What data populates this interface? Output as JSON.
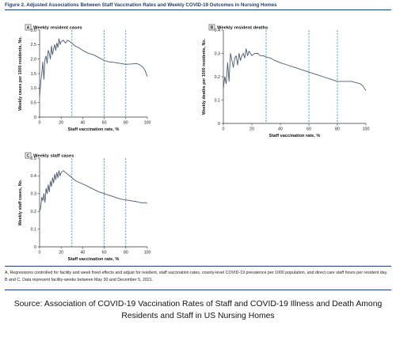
{
  "figure_title": "Figure 2. Adjusted Associations Between Staff Vaccination Rates and Weekly COVID-19 Outcomes in Nursing Homes",
  "footnote": "A, Regressions controlled for facility and week fixed effects and adjust for resident, staff vaccination rates, county-level COVID-19 prevalence per 1000 population, and direct care staff hours per resident day. B and C, Data represent facility-weeks between May 30 and December 5, 2021.",
  "source": "Source: Association of COVID-19 Vaccination Rates of Staff and COVID-19 Illness and Death Among Residents and Staff in US Nursing Homes",
  "colors": {
    "line": "#4a5a6e",
    "reference": "#2a85c4",
    "axis": "#333333",
    "title": "#1d3f73"
  },
  "chart_data": [
    {
      "type": "line",
      "panel_letter": "A",
      "title": "Weekly resident cases",
      "xlabel": "Staff vaccination rate, %",
      "ylabel": "Weekly cases per 1000 residents, No.",
      "xlim": [
        0,
        100
      ],
      "ylim": [
        0,
        3.0
      ],
      "xticks": [
        "0",
        "20",
        "40",
        "60",
        "80",
        "100"
      ],
      "yticks": [
        "0",
        "0.5",
        "1.0",
        "1.5",
        "2.0",
        "2.5",
        "3.0"
      ],
      "reference_lines_x": [
        30,
        60,
        80
      ],
      "x": [
        0,
        1,
        2,
        3,
        4,
        5,
        6,
        7,
        8,
        9,
        10,
        11,
        12,
        13,
        14,
        15,
        16,
        17,
        18,
        19,
        20,
        22,
        24,
        26,
        28,
        30,
        33,
        36,
        40,
        45,
        50,
        55,
        60,
        65,
        70,
        75,
        80,
        85,
        90,
        93,
        96,
        98,
        100
      ],
      "values": [
        0.7,
        1.2,
        1.5,
        1.9,
        1.3,
        2.0,
        2.1,
        1.85,
        2.3,
        2.2,
        2.0,
        2.45,
        2.15,
        2.35,
        2.5,
        2.3,
        2.55,
        2.4,
        2.7,
        2.5,
        2.6,
        2.65,
        2.55,
        2.65,
        2.6,
        2.55,
        2.45,
        2.4,
        2.3,
        2.2,
        2.15,
        2.05,
        1.95,
        1.9,
        1.88,
        1.85,
        1.82,
        1.83,
        1.85,
        1.8,
        1.72,
        1.6,
        1.4
      ]
    },
    {
      "type": "line",
      "panel_letter": "B",
      "title": "Weekly resident deaths",
      "xlabel": "Staff vaccination rate, %",
      "ylabel": "Weekly deaths per 1000 residents, No.",
      "xlim": [
        0,
        100
      ],
      "ylim": [
        0,
        0.4
      ],
      "xticks": [
        "0",
        "20",
        "40",
        "60",
        "80",
        "100"
      ],
      "yticks": [
        "0",
        "0.1",
        "0.2",
        "0.3",
        "0.4"
      ],
      "reference_lines_x": [
        30,
        60,
        80
      ],
      "x": [
        0,
        1,
        2,
        3,
        4,
        5,
        6,
        7,
        8,
        9,
        10,
        11,
        12,
        13,
        14,
        15,
        16,
        17,
        18,
        19,
        20,
        22,
        24,
        26,
        28,
        30,
        33,
        36,
        40,
        45,
        50,
        55,
        60,
        65,
        70,
        75,
        80,
        85,
        90,
        93,
        96,
        98,
        100
      ],
      "values": [
        0.15,
        0.2,
        0.17,
        0.26,
        0.18,
        0.3,
        0.27,
        0.24,
        0.28,
        0.29,
        0.25,
        0.3,
        0.27,
        0.29,
        0.3,
        0.28,
        0.32,
        0.29,
        0.31,
        0.3,
        0.29,
        0.3,
        0.3,
        0.29,
        0.29,
        0.285,
        0.28,
        0.27,
        0.26,
        0.25,
        0.24,
        0.23,
        0.22,
        0.21,
        0.2,
        0.19,
        0.18,
        0.18,
        0.18,
        0.175,
        0.17,
        0.16,
        0.14
      ]
    },
    {
      "type": "line",
      "panel_letter": "C",
      "title": "Weekly staff cases",
      "xlabel": "Staff vaccination rate, %",
      "ylabel": "Weekly staff cases, No.",
      "xlim": [
        0,
        100
      ],
      "ylim": [
        0,
        0.5
      ],
      "xticks": [
        "0",
        "20",
        "40",
        "60",
        "80",
        "100"
      ],
      "yticks": [
        "0",
        "0.1",
        "0.2",
        "0.3",
        "0.4",
        "0.5"
      ],
      "reference_lines_x": [
        30,
        60,
        80
      ],
      "x": [
        0,
        1,
        2,
        3,
        4,
        5,
        6,
        7,
        8,
        9,
        10,
        11,
        12,
        13,
        14,
        15,
        16,
        17,
        18,
        19,
        20,
        22,
        24,
        26,
        28,
        30,
        33,
        36,
        40,
        45,
        50,
        55,
        60,
        65,
        70,
        75,
        80,
        85,
        90,
        93,
        96,
        98,
        100
      ],
      "values": [
        0.2,
        0.22,
        0.28,
        0.26,
        0.3,
        0.25,
        0.33,
        0.3,
        0.35,
        0.31,
        0.37,
        0.34,
        0.39,
        0.36,
        0.41,
        0.38,
        0.42,
        0.39,
        0.43,
        0.4,
        0.42,
        0.43,
        0.42,
        0.41,
        0.4,
        0.39,
        0.375,
        0.365,
        0.355,
        0.34,
        0.325,
        0.31,
        0.3,
        0.29,
        0.28,
        0.27,
        0.265,
        0.26,
        0.255,
        0.25,
        0.248,
        0.25,
        0.245
      ]
    }
  ]
}
